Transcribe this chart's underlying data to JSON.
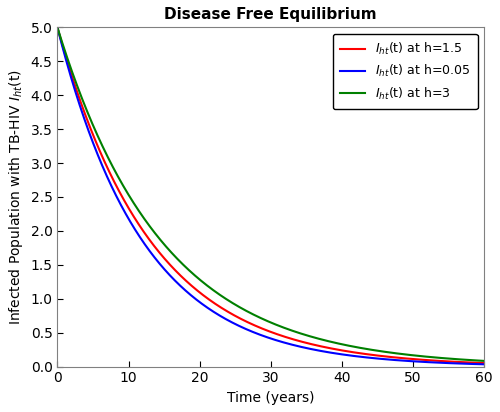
{
  "title": "Disease Free Equilibrium",
  "xlabel": "Time (years)",
  "ylabel": "Infected Population with TB-HIV $I_{ht}$(t)",
  "xlim": [
    0,
    60
  ],
  "ylim": [
    0,
    5
  ],
  "yticks": [
    0,
    0.5,
    1,
    1.5,
    2,
    2.5,
    3,
    3.5,
    4,
    4.5,
    5
  ],
  "xticks": [
    0,
    10,
    20,
    30,
    40,
    50,
    60
  ],
  "lines": [
    {
      "label": "I_ht(t) at h=1.5",
      "color": "red",
      "decay": 0.076
    },
    {
      "label": "I_ht(t) at h=0.05",
      "color": "blue",
      "decay": 0.083
    },
    {
      "label": "I_ht(t) at h=3",
      "color": "green",
      "decay": 0.068
    }
  ],
  "initial_value": 5.0,
  "t_max": 60,
  "n_points": 2000,
  "legend_loc": "upper right",
  "background_color": "#ffffff",
  "title_fontsize": 11,
  "label_fontsize": 10,
  "tick_labelsize": 10,
  "linewidth": 1.5
}
